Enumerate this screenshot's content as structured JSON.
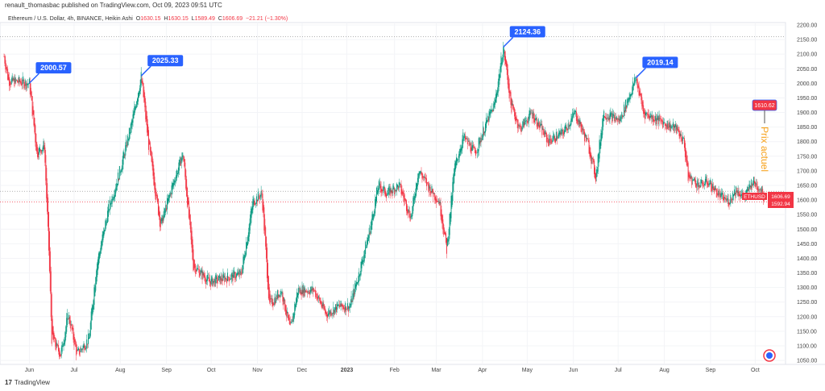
{
  "header": {
    "published": "renault_thomasbac published on TradingView.com, Oct 09, 2023 09:51 UTC"
  },
  "legend": {
    "symbol": "Ethereum / U.S. Dollar, 4h, BINANCE, Heikin Ashi",
    "o_label": "O",
    "o": "1630.15",
    "h_label": "H",
    "h": "1630.15",
    "l_label": "L",
    "l": "1589.49",
    "c_label": "C",
    "c": "1606.69",
    "change": "−21.21 (−1.30%)"
  },
  "footer": {
    "brand": "TradingView",
    "logo": "17"
  },
  "colors": {
    "up": "#089981",
    "down": "#f23645",
    "callout": "#2962ff",
    "annot": "#f7a21b"
  },
  "chart_data": {
    "type": "candlestick",
    "title": "Ethereum / U.S. Dollar, 4h, BINANCE, Heikin Ashi",
    "x_unit": "days since 2022-05-14",
    "ylim": [
      1030,
      2220
    ],
    "y_ticks": [
      2200,
      2150,
      2100,
      2050,
      2000,
      1950,
      1900,
      1850,
      1800,
      1750,
      1700,
      1650,
      1600,
      1550,
      1500,
      1450,
      1400,
      1350,
      1300,
      1250,
      1200,
      1150,
      1100,
      1050
    ],
    "x_ticks": [
      {
        "label": "Jun",
        "day": 17
      },
      {
        "label": "Jul",
        "day": 47
      },
      {
        "label": "Aug",
        "day": 78
      },
      {
        "label": "Sep",
        "day": 109
      },
      {
        "label": "Oct",
        "day": 139
      },
      {
        "label": "Nov",
        "day": 170
      },
      {
        "label": "Dec",
        "day": 200
      },
      {
        "label": "2023",
        "day": 230
      },
      {
        "label": "Feb",
        "day": 262
      },
      {
        "label": "Mar",
        "day": 290
      },
      {
        "label": "Apr",
        "day": 321
      },
      {
        "label": "May",
        "day": 351
      },
      {
        "label": "Jun",
        "day": 382
      },
      {
        "label": "Jul",
        "day": 412
      },
      {
        "label": "Aug",
        "day": 443
      },
      {
        "label": "Sep",
        "day": 474
      },
      {
        "label": "Oct",
        "day": 504
      }
    ],
    "path": [
      [
        0,
        2092
      ],
      [
        3,
        2009
      ],
      [
        17,
        2000
      ],
      [
        22,
        1760
      ],
      [
        27,
        1788
      ],
      [
        30,
        1429
      ],
      [
        32,
        1125
      ],
      [
        38,
        1070
      ],
      [
        43,
        1208
      ],
      [
        49,
        1070
      ],
      [
        57,
        1125
      ],
      [
        62,
        1374
      ],
      [
        70,
        1567
      ],
      [
        78,
        1705
      ],
      [
        86,
        1871
      ],
      [
        92,
        2025
      ],
      [
        97,
        1788
      ],
      [
        105,
        1512
      ],
      [
        113,
        1650
      ],
      [
        120,
        1760
      ],
      [
        127,
        1374
      ],
      [
        138,
        1318
      ],
      [
        148,
        1332
      ],
      [
        159,
        1346
      ],
      [
        167,
        1595
      ],
      [
        173,
        1622
      ],
      [
        178,
        1235
      ],
      [
        186,
        1291
      ],
      [
        192,
        1152
      ],
      [
        197,
        1291
      ],
      [
        208,
        1291
      ],
      [
        216,
        1208
      ],
      [
        224,
        1235
      ],
      [
        232,
        1235
      ],
      [
        238,
        1346
      ],
      [
        246,
        1512
      ],
      [
        251,
        1650
      ],
      [
        257,
        1622
      ],
      [
        265,
        1650
      ],
      [
        273,
        1539
      ],
      [
        278,
        1705
      ],
      [
        284,
        1650
      ],
      [
        292,
        1595
      ],
      [
        297,
        1429
      ],
      [
        302,
        1705
      ],
      [
        308,
        1816
      ],
      [
        316,
        1760
      ],
      [
        324,
        1871
      ],
      [
        329,
        1926
      ],
      [
        335,
        2124
      ],
      [
        340,
        1926
      ],
      [
        346,
        1843
      ],
      [
        354,
        1899
      ],
      [
        365,
        1802
      ],
      [
        375,
        1830
      ],
      [
        383,
        1899
      ],
      [
        392,
        1788
      ],
      [
        397,
        1677
      ],
      [
        402,
        1899
      ],
      [
        413,
        1871
      ],
      [
        424,
        2019
      ],
      [
        429,
        1899
      ],
      [
        440,
        1871
      ],
      [
        451,
        1843
      ],
      [
        456,
        1802
      ],
      [
        459,
        1677
      ],
      [
        467,
        1650
      ],
      [
        472,
        1664
      ],
      [
        481,
        1609
      ],
      [
        486,
        1595
      ],
      [
        491,
        1636
      ],
      [
        497,
        1609
      ],
      [
        502,
        1664
      ],
      [
        508,
        1636
      ],
      [
        510,
        1607
      ]
    ],
    "callouts": [
      {
        "label": "2000.57",
        "day": 17,
        "price": 2000.57
      },
      {
        "label": "2025.33",
        "day": 92,
        "price": 2025.33
      },
      {
        "label": "2124.36",
        "day": 335,
        "price": 2124.36
      },
      {
        "label": "2019.14",
        "day": 424,
        "price": 2019.14
      }
    ],
    "current_callout": {
      "label": "1610.62"
    },
    "annotation": "Prix actuel",
    "price_tag": {
      "symbol": "ETHUSD",
      "price": "1606.69",
      "price2": "1592.94"
    },
    "hlines": [
      2160,
      1630,
      1592.94
    ]
  }
}
